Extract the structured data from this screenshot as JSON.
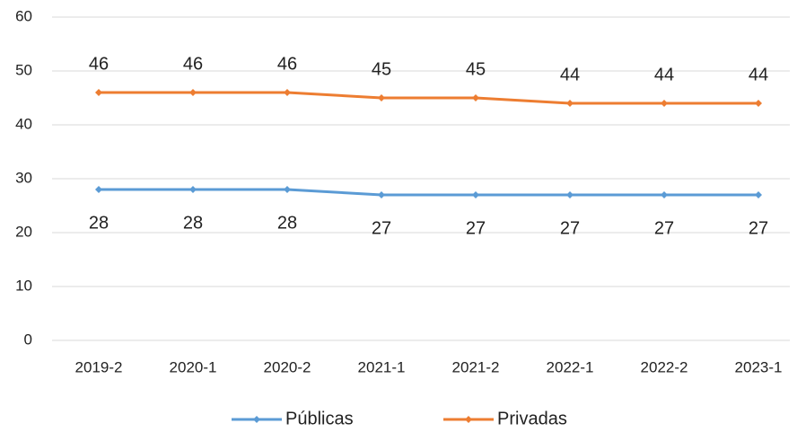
{
  "chart_data": {
    "type": "line",
    "categories": [
      "2019-2",
      "2020-1",
      "2020-2",
      "2021-1",
      "2021-2",
      "2022-1",
      "2022-2",
      "2023-1"
    ],
    "series": [
      {
        "name": "Públicas",
        "color": "#5b9bd5",
        "values": [
          28,
          28,
          28,
          27,
          27,
          27,
          27,
          27
        ]
      },
      {
        "name": "Privadas",
        "color": "#ed7d31",
        "values": [
          46,
          46,
          46,
          45,
          45,
          44,
          44,
          44
        ]
      }
    ],
    "ylim": [
      0,
      60
    ],
    "yticks": [
      0,
      10,
      20,
      30,
      40,
      50,
      60
    ],
    "grid": true,
    "legend": "bottom"
  }
}
